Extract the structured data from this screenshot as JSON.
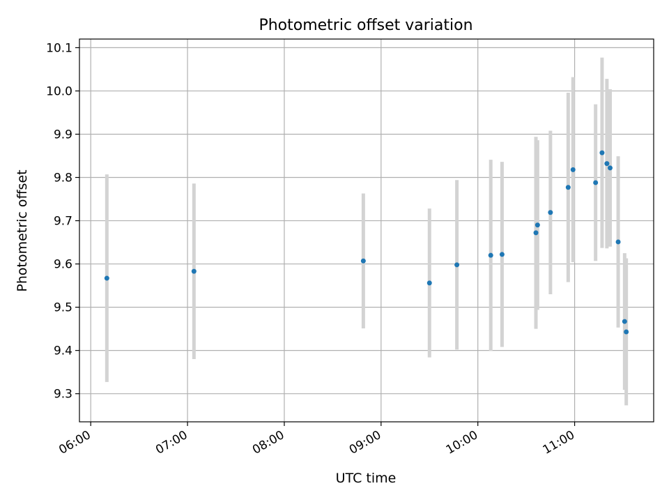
{
  "chart_data": {
    "type": "scatter",
    "title": "Photometric offset variation",
    "xlabel": "UTC time",
    "ylabel": "Photometric offset",
    "grid": true,
    "xlim": [
      "05:53",
      "11:49"
    ],
    "ylim": [
      9.235,
      10.12
    ],
    "x_ticks": [
      "06:00",
      "07:00",
      "08:00",
      "09:00",
      "10:00",
      "11:00"
    ],
    "y_ticks": [
      "9.3",
      "9.4",
      "9.5",
      "9.6",
      "9.7",
      "9.8",
      "9.9",
      "10.0",
      "10.1"
    ],
    "colors": {
      "point": "#1f77b4",
      "errorbar": "#d3d3d3",
      "grid": "#b0b0b0"
    },
    "series": [
      {
        "points": [
          {
            "x": "06:10",
            "y": 9.567,
            "err": 0.24
          },
          {
            "x": "07:04",
            "y": 9.583,
            "err": 0.203
          },
          {
            "x": "08:49",
            "y": 9.607,
            "err": 0.156
          },
          {
            "x": "09:30",
            "y": 9.556,
            "err": 0.172
          },
          {
            "x": "09:47",
            "y": 9.598,
            "err": 0.196
          },
          {
            "x": "10:08",
            "y": 9.62,
            "err": 0.221
          },
          {
            "x": "10:15",
            "y": 9.622,
            "err": 0.214
          },
          {
            "x": "10:36",
            "y": 9.672,
            "err": 0.222
          },
          {
            "x": "10:37",
            "y": 9.69,
            "err": 0.196
          },
          {
            "x": "10:45",
            "y": 9.719,
            "err": 0.189
          },
          {
            "x": "10:56",
            "y": 9.777,
            "err": 0.219
          },
          {
            "x": "10:59",
            "y": 9.818,
            "err": 0.214
          },
          {
            "x": "11:13",
            "y": 9.788,
            "err": 0.181
          },
          {
            "x": "11:17",
            "y": 9.857,
            "err": 0.22
          },
          {
            "x": "11:20",
            "y": 9.832,
            "err": 0.196
          },
          {
            "x": "11:22",
            "y": 9.822,
            "err": 0.182
          },
          {
            "x": "11:27",
            "y": 9.651,
            "err": 0.198
          },
          {
            "x": "11:31",
            "y": 9.467,
            "err": 0.158
          },
          {
            "x": "11:32",
            "y": 9.443,
            "err": 0.17
          }
        ]
      }
    ]
  }
}
